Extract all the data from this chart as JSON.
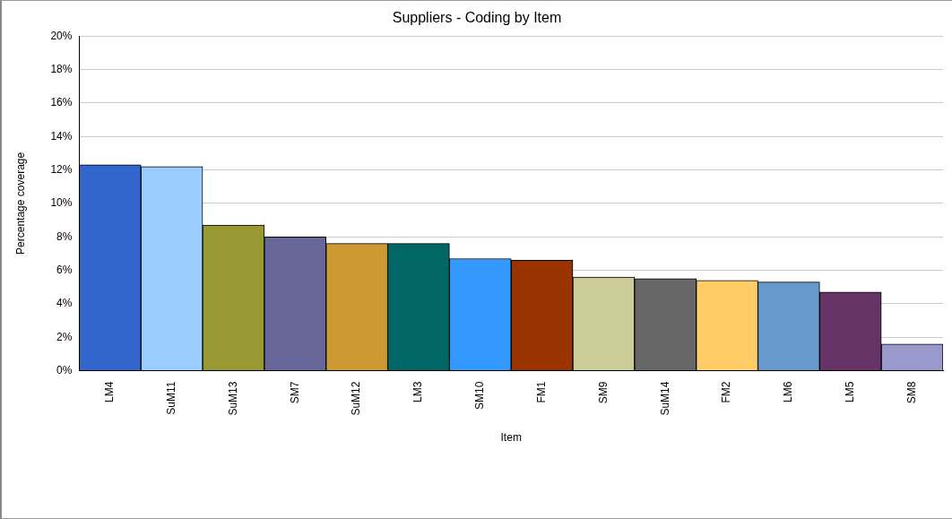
{
  "chart_data": {
    "type": "bar",
    "title": "Suppliers - Coding by Item",
    "xlabel": "Item",
    "ylabel": "Percentage coverage",
    "categories": [
      "LM4",
      "SuM11",
      "SuM13",
      "SM7",
      "SuM12",
      "LM3",
      "SM10",
      "FM1",
      "SM9",
      "SuM14",
      "FM2",
      "LM6",
      "LM5",
      "SM8"
    ],
    "values": [
      12.3,
      12.2,
      8.7,
      8.0,
      7.6,
      7.6,
      6.7,
      6.6,
      5.6,
      5.5,
      5.4,
      5.3,
      4.7,
      1.6
    ],
    "colors": [
      "#3366cc",
      "#99ccff",
      "#999933",
      "#666699",
      "#cc9933",
      "#006666",
      "#3399ff",
      "#993300",
      "#cccc99",
      "#666666",
      "#ffcc66",
      "#6699cc",
      "#663366",
      "#9999cc"
    ],
    "ylim": [
      0,
      20
    ],
    "yticks": [
      {
        "value": 0,
        "label": "0%"
      },
      {
        "value": 2,
        "label": "2%"
      },
      {
        "value": 4,
        "label": "4%"
      },
      {
        "value": 6,
        "label": "6%"
      },
      {
        "value": 8,
        "label": "8%"
      },
      {
        "value": 10,
        "label": "10%"
      },
      {
        "value": 12,
        "label": "12%"
      },
      {
        "value": 14,
        "label": "14%"
      },
      {
        "value": 16,
        "label": "16%"
      },
      {
        "value": 18,
        "label": "18%"
      },
      {
        "value": 20,
        "label": "20%"
      }
    ],
    "grid": "y",
    "legend": false
  }
}
